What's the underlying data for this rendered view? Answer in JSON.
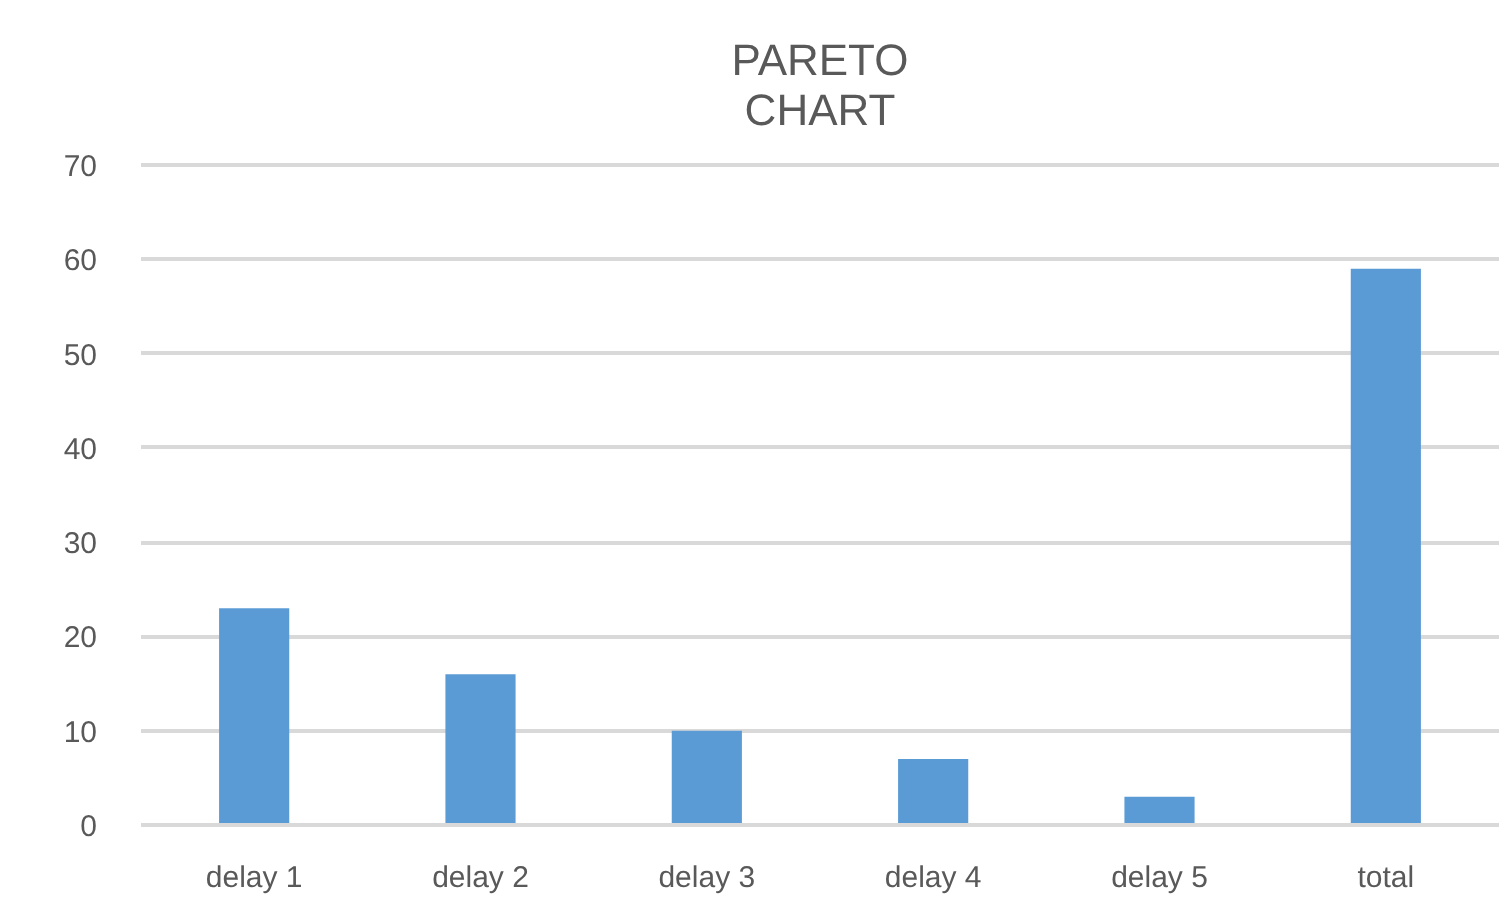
{
  "chart_data": {
    "type": "bar",
    "title": "PARETO CHART",
    "categories": [
      "delay 1",
      "delay 2",
      "delay 3",
      "delay 4",
      "delay 5",
      "total"
    ],
    "values": [
      23,
      16,
      10,
      7,
      3,
      59
    ],
    "color": "#5b9bd5",
    "ylim": [
      0,
      70
    ],
    "yticks": [
      0,
      10,
      20,
      30,
      40,
      50,
      60,
      70
    ],
    "grid": "y"
  }
}
